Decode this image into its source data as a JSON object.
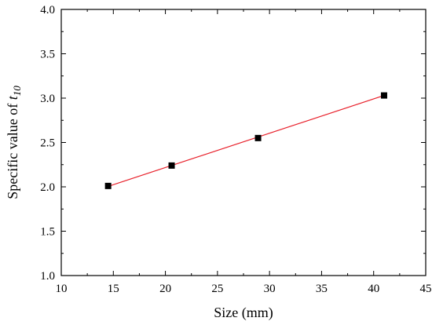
{
  "chart_data": {
    "type": "scatter",
    "title": "",
    "xlabel": "Size (mm)",
    "ylabel": {
      "text": "Specific value of ",
      "symbol": "t",
      "subscript": "10"
    },
    "xlim": [
      10,
      45
    ],
    "ylim": [
      1.0,
      4.0
    ],
    "x_ticks": [
      "10",
      "15",
      "20",
      "25",
      "30",
      "35",
      "40",
      "45"
    ],
    "y_ticks": [
      "1.0",
      "1.5",
      "2.0",
      "2.5",
      "3.0",
      "3.5",
      "4.0"
    ],
    "grid": false,
    "legend": "none",
    "series": [
      {
        "marker": "square",
        "color": "#000000",
        "x": [
          14.5,
          20.6,
          28.9,
          41.0
        ],
        "y": [
          2.01,
          2.24,
          2.55,
          3.03
        ]
      }
    ],
    "fit_line": {
      "color": "#e8212b",
      "x": [
        14.5,
        41.0
      ],
      "y": [
        2.005,
        3.03
      ]
    }
  }
}
